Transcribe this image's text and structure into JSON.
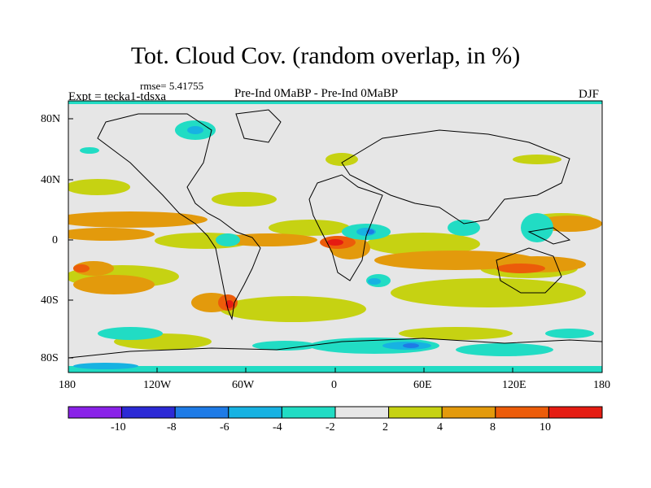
{
  "title": "Tot. Cloud Cov. (random overlap, in %)",
  "header": {
    "left": "Expt = tecka1-tdsxa",
    "rmse": "rmse= 5.41755",
    "center": "Pre-Ind 0MaBP - Pre-Ind    0MaBP",
    "season": "DJF"
  },
  "map": {
    "lat_ticks": [
      "80N",
      "40N",
      "0",
      "40S",
      "80S"
    ],
    "lon_ticks": [
      "180",
      "120W",
      "60W",
      "0",
      "60E",
      "120E",
      "180"
    ],
    "background_color": "#e6e6e6"
  },
  "colorbar": {
    "labels": [
      "-10",
      "-8",
      "-6",
      "-4",
      "-2",
      "2",
      "4",
      "8",
      "10"
    ],
    "colors": [
      "#8a22e8",
      "#2c2ad6",
      "#1e7be6",
      "#17b2e2",
      "#21dcc4",
      "#e6e6e6",
      "#c6d212",
      "#e39a0c",
      "#ec5c0a",
      "#e51c12"
    ]
  }
}
